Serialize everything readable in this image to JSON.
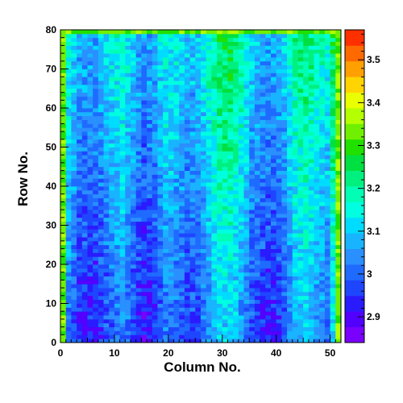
{
  "chart_data": {
    "type": "heatmap",
    "xlabel": "Column No.",
    "ylabel": "Row No.",
    "xlim": [
      0,
      52
    ],
    "ylim": [
      0,
      80
    ],
    "x_ticks": [
      0,
      10,
      20,
      30,
      40,
      50
    ],
    "y_ticks": [
      0,
      10,
      20,
      30,
      40,
      50,
      60,
      70,
      80
    ],
    "color_scale": {
      "range": [
        2.84,
        3.57
      ],
      "ticks": [
        2.9,
        3,
        3.1,
        3.2,
        3.3,
        3.4,
        3.5
      ],
      "tick_labels": [
        "2.9",
        "3",
        "3.1",
        "3.2",
        "3.3",
        "3.4",
        "3.5"
      ],
      "palette": [
        "#7a00ff",
        "#5200ff",
        "#2a1bff",
        "#1f46ff",
        "#1f6bff",
        "#2a8fff",
        "#18b4ff",
        "#00dcff",
        "#00ffe0",
        "#00ffb4",
        "#00f080",
        "#00e040",
        "#20e000",
        "#70f000",
        "#b4ff00",
        "#eaff00",
        "#ffd400",
        "#ffa000",
        "#ff6a00",
        "#ff3000"
      ]
    },
    "column_profile": [
      {
        "column": 0,
        "value": 3.25
      },
      {
        "column": 1,
        "value": 3.05
      },
      {
        "column": 3,
        "value": 2.97
      },
      {
        "column": 6,
        "value": 2.96
      },
      {
        "column": 9,
        "value": 3.03
      },
      {
        "column": 11,
        "value": 3.07
      },
      {
        "column": 13,
        "value": 3.0
      },
      {
        "column": 15,
        "value": 2.94
      },
      {
        "column": 17,
        "value": 2.97
      },
      {
        "column": 19,
        "value": 3.05
      },
      {
        "column": 21,
        "value": 3.03
      },
      {
        "column": 23,
        "value": 2.99
      },
      {
        "column": 25,
        "value": 3.0
      },
      {
        "column": 27,
        "value": 3.07
      },
      {
        "column": 29,
        "value": 3.14
      },
      {
        "column": 31,
        "value": 3.14
      },
      {
        "column": 33,
        "value": 3.09
      },
      {
        "column": 35,
        "value": 3.0
      },
      {
        "column": 37,
        "value": 2.97
      },
      {
        "column": 39,
        "value": 2.96
      },
      {
        "column": 41,
        "value": 3.0
      },
      {
        "column": 43,
        "value": 3.1
      },
      {
        "column": 45,
        "value": 3.13
      },
      {
        "column": 47,
        "value": 3.08
      },
      {
        "column": 49,
        "value": 3.04
      },
      {
        "column": 51,
        "value": 3.25
      }
    ],
    "row_gradient_per_row": 0.0019,
    "border_value": 3.33
  }
}
